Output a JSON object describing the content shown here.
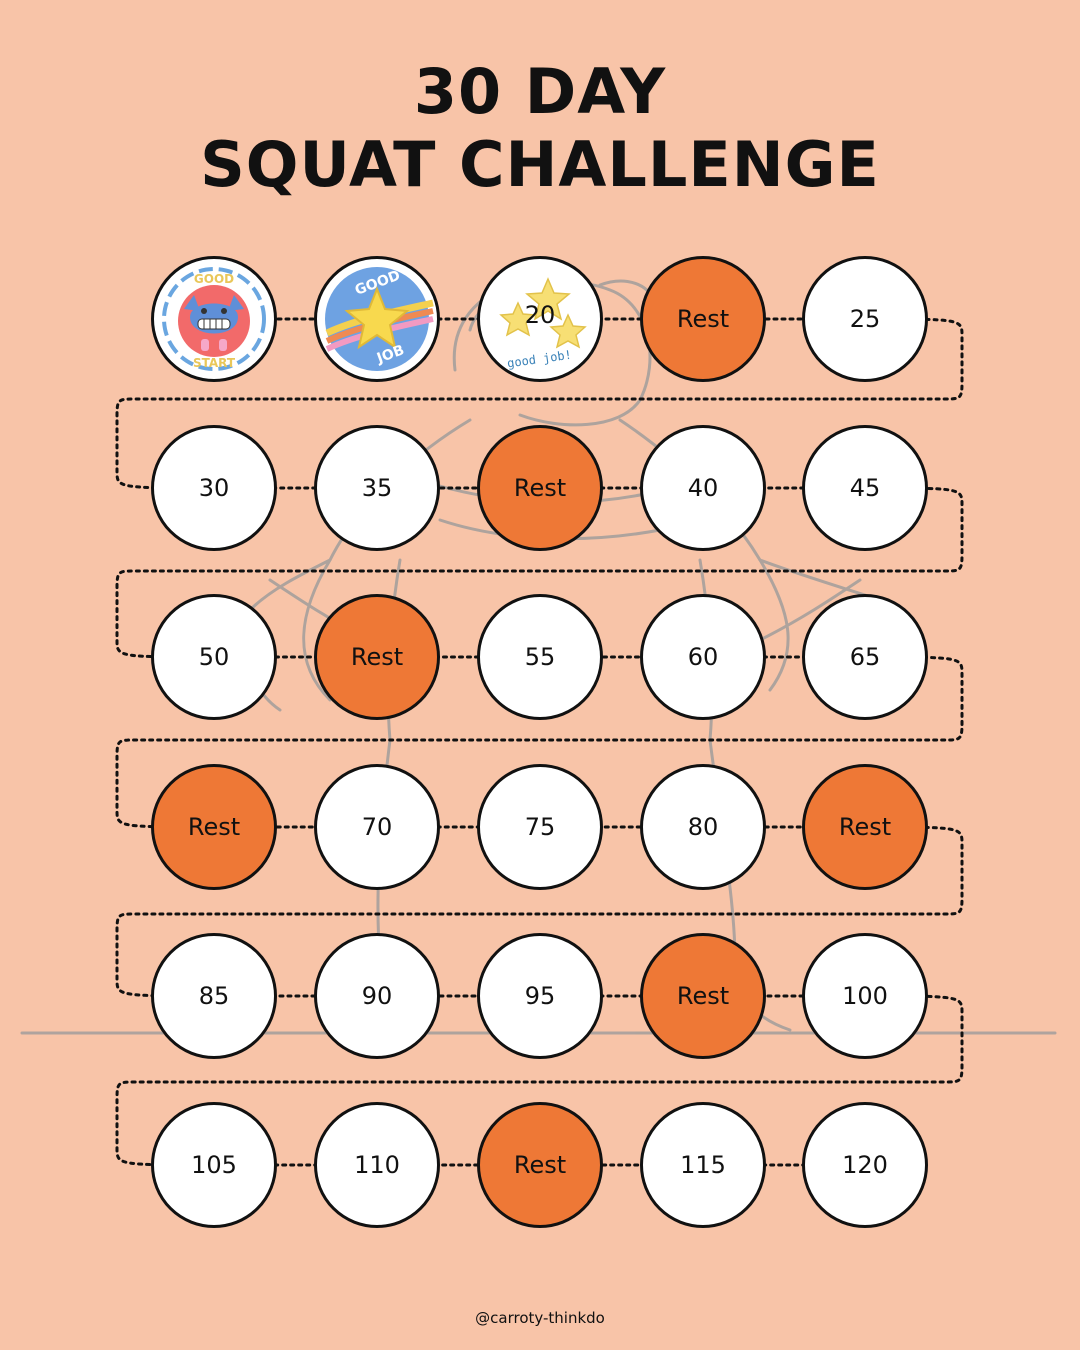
{
  "title": {
    "line1": "30 DAY",
    "line2": "SQUAT CHALLENGE"
  },
  "colors": {
    "background": "#f8c4a8",
    "rest": "#ee7836",
    "circle": "#ffffff",
    "outline": "#111111"
  },
  "days": [
    {
      "label": "",
      "type": "sticker",
      "sticker": "good-start-sticker"
    },
    {
      "label": "",
      "type": "sticker",
      "sticker": "good-job-star-sticker"
    },
    {
      "label": "20",
      "type": "sticker",
      "sticker": "stars-good-job-sticker"
    },
    {
      "label": "Rest",
      "type": "rest"
    },
    {
      "label": "25",
      "type": "count"
    },
    {
      "label": "30",
      "type": "count"
    },
    {
      "label": "35",
      "type": "count"
    },
    {
      "label": "Rest",
      "type": "rest"
    },
    {
      "label": "40",
      "type": "count"
    },
    {
      "label": "45",
      "type": "count"
    },
    {
      "label": "50",
      "type": "count"
    },
    {
      "label": "Rest",
      "type": "rest"
    },
    {
      "label": "55",
      "type": "count"
    },
    {
      "label": "60",
      "type": "count"
    },
    {
      "label": "65",
      "type": "count"
    },
    {
      "label": "Rest",
      "type": "rest"
    },
    {
      "label": "70",
      "type": "count"
    },
    {
      "label": "75",
      "type": "count"
    },
    {
      "label": "80",
      "type": "count"
    },
    {
      "label": "Rest",
      "type": "rest"
    },
    {
      "label": "85",
      "type": "count"
    },
    {
      "label": "90",
      "type": "count"
    },
    {
      "label": "95",
      "type": "count"
    },
    {
      "label": "Rest",
      "type": "rest"
    },
    {
      "label": "100",
      "type": "count"
    },
    {
      "label": "105",
      "type": "count"
    },
    {
      "label": "110",
      "type": "count"
    },
    {
      "label": "Rest",
      "type": "rest"
    },
    {
      "label": "115",
      "type": "count"
    },
    {
      "label": "120",
      "type": "count"
    }
  ],
  "stickers": {
    "good_start": {
      "top": "GOOD",
      "bottom": "START"
    },
    "good_job": {
      "top": "GOOD",
      "bottom": "JOB"
    },
    "stars": {
      "text": "good job!"
    }
  },
  "footer": {
    "handle": "@carroty-thinkdo"
  }
}
